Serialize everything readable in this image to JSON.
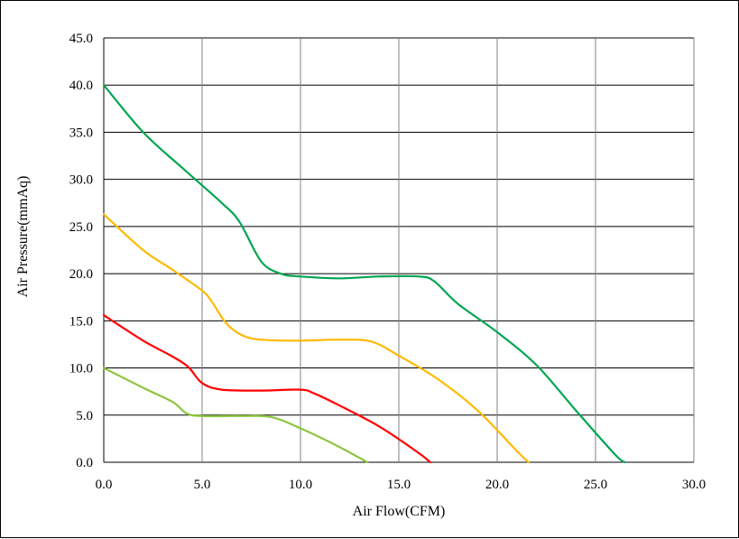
{
  "chart_data": {
    "type": "line",
    "xlabel": "Air Flow(CFM)",
    "ylabel": "Air Pressure(mmAq)",
    "xlim": [
      0,
      30
    ],
    "ylim": [
      0,
      45
    ],
    "x_ticks": [
      "0.0",
      "5.0",
      "10.0",
      "15.0",
      "20.0",
      "25.0",
      "30.0"
    ],
    "y_ticks": [
      "0.0",
      "5.0",
      "10.0",
      "15.0",
      "20.0",
      "25.0",
      "30.0",
      "35.0",
      "40.0",
      "45.0"
    ],
    "grid": true,
    "legend": "none",
    "series": [
      {
        "color": "#00a651",
        "points": [
          [
            0,
            40
          ],
          [
            2,
            35
          ],
          [
            4,
            31.2
          ],
          [
            6,
            27.5
          ],
          [
            6.9,
            25.5
          ],
          [
            8,
            21.3
          ],
          [
            9,
            20
          ],
          [
            10,
            19.7
          ],
          [
            12,
            19.5
          ],
          [
            14,
            19.7
          ],
          [
            16,
            19.7
          ],
          [
            16.8,
            19.2
          ],
          [
            18,
            16.8
          ],
          [
            20,
            13.8
          ],
          [
            22,
            10.3
          ],
          [
            24,
            5.5
          ],
          [
            26,
            0.8
          ],
          [
            26.5,
            0
          ]
        ]
      },
      {
        "color": "#ffb900",
        "points": [
          [
            0,
            26.3
          ],
          [
            2,
            22.5
          ],
          [
            3.5,
            20.4
          ],
          [
            5,
            18.2
          ],
          [
            5.5,
            17
          ],
          [
            6.2,
            14.8
          ],
          [
            7,
            13.5
          ],
          [
            8,
            13
          ],
          [
            10,
            12.9
          ],
          [
            12,
            13
          ],
          [
            13.6,
            12.8
          ],
          [
            15,
            11.3
          ],
          [
            17,
            8.8
          ],
          [
            19,
            5.5
          ],
          [
            21,
            1.2
          ],
          [
            21.6,
            0
          ]
        ]
      },
      {
        "color": "#ff0000",
        "points": [
          [
            0,
            15.6
          ],
          [
            2,
            12.9
          ],
          [
            3.5,
            11.2
          ],
          [
            4.3,
            10.1
          ],
          [
            5,
            8.4
          ],
          [
            6,
            7.7
          ],
          [
            8,
            7.6
          ],
          [
            10,
            7.7
          ],
          [
            10.7,
            7.3
          ],
          [
            12,
            6
          ],
          [
            14,
            3.8
          ],
          [
            16,
            1
          ],
          [
            16.6,
            0
          ]
        ]
      },
      {
        "color": "#8cc63f",
        "points": [
          [
            0,
            10
          ],
          [
            2,
            7.9
          ],
          [
            3.5,
            6.4
          ],
          [
            4.2,
            5.2
          ],
          [
            5,
            4.9
          ],
          [
            7,
            4.9
          ],
          [
            8.5,
            4.8
          ],
          [
            10,
            3.6
          ],
          [
            12,
            1.6
          ],
          [
            13.4,
            0
          ]
        ]
      }
    ]
  }
}
